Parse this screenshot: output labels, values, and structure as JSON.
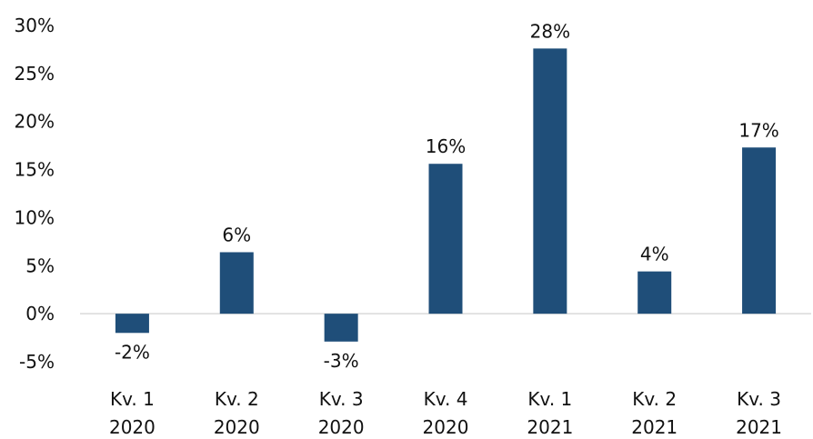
{
  "chart_data": {
    "type": "bar",
    "categories": [
      [
        "Kv. 1",
        "2020"
      ],
      [
        "Kv. 2",
        "2020"
      ],
      [
        "Kv. 3",
        "2020"
      ],
      [
        "Kv. 4",
        "2020"
      ],
      [
        "Kv. 1",
        "2021"
      ],
      [
        "Kv. 2",
        "2021"
      ],
      [
        "Kv. 3",
        "2021"
      ]
    ],
    "values": [
      -2.0,
      6.4,
      -2.9,
      15.6,
      27.6,
      4.4,
      17.3
    ],
    "data_labels": [
      "-2%",
      "6%",
      "-3%",
      "16%",
      "28%",
      "4%",
      "17%"
    ],
    "y_ticks": [
      -5,
      0,
      5,
      10,
      15,
      20,
      25,
      30
    ],
    "y_tick_labels": [
      "-5%",
      "0%",
      "5%",
      "10%",
      "15%",
      "20%",
      "25%",
      "30%"
    ],
    "ylim": [
      -5,
      30
    ],
    "grid": false,
    "legend": "none",
    "bar_color": "#1f4e79",
    "axis_color": "#d9d9d9"
  }
}
